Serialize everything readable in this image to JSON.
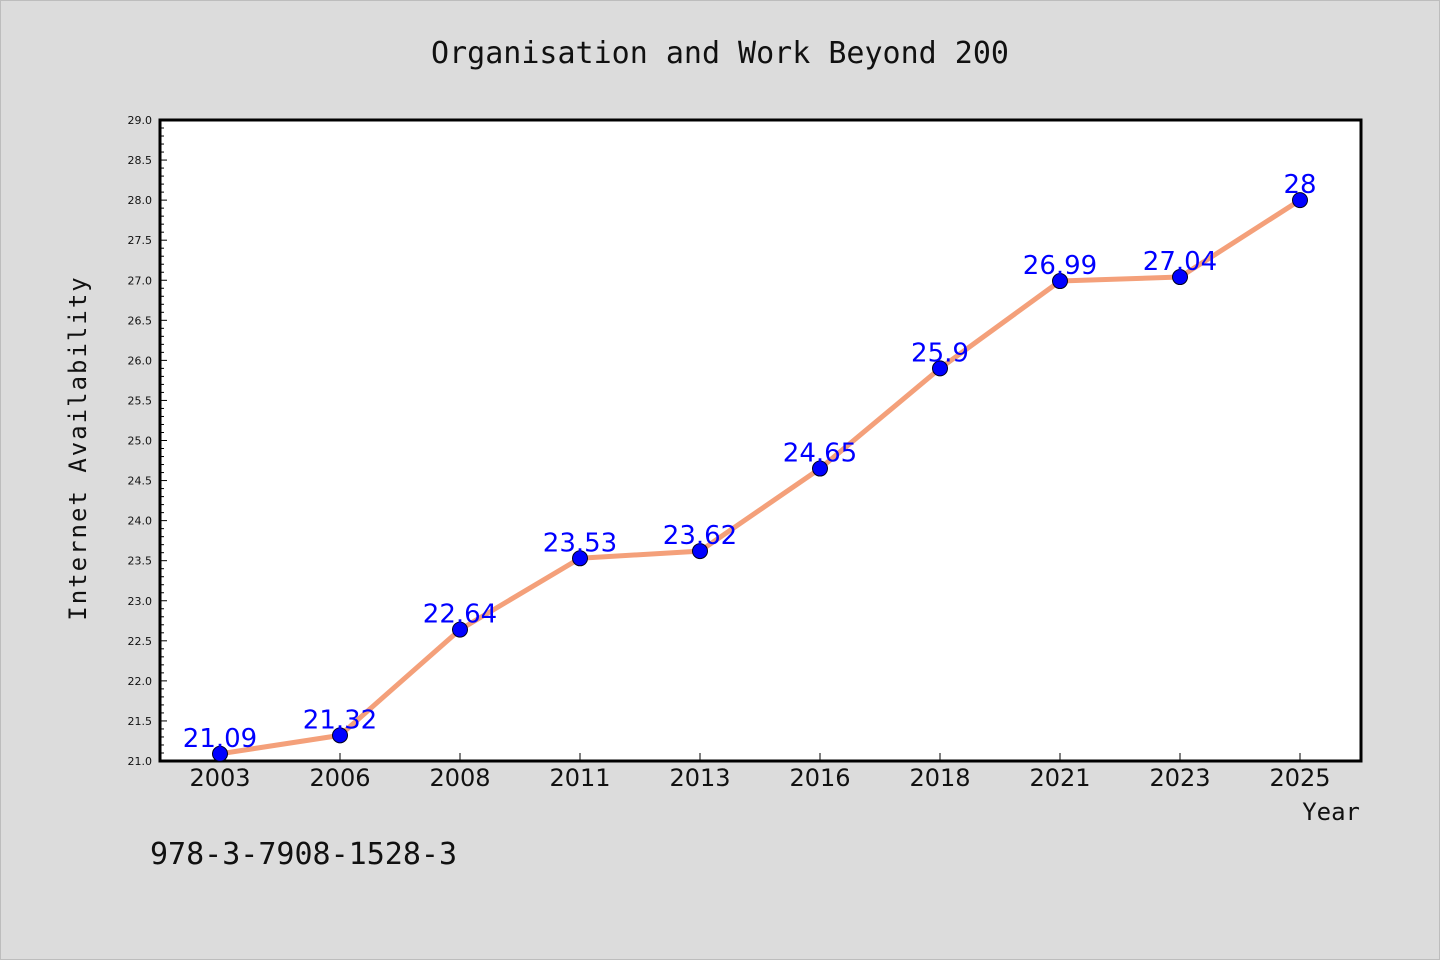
{
  "chart_data": {
    "type": "line",
    "title": "Organisation and Work Beyond 200",
    "xlabel": "Year",
    "ylabel": "Internet Availability",
    "categories": [
      "2003",
      "2006",
      "2008",
      "2011",
      "2013",
      "2016",
      "2018",
      "2021",
      "2023",
      "2025"
    ],
    "series": [
      {
        "values": [
          21.09,
          21.32,
          22.64,
          23.53,
          23.62,
          24.65,
          25.9,
          26.99,
          27.04,
          28
        ]
      }
    ],
    "data_labels": [
      "21.09",
      "21.32",
      "22.64",
      "23.53",
      "23.62",
      "24.65",
      "25.9",
      "26.99",
      "27.04",
      "28"
    ],
    "ylim": [
      21.0,
      29.0
    ],
    "yticks": [
      "21.0",
      "21.5",
      "22.0",
      "22.5",
      "23.0",
      "23.5",
      "24.0",
      "24.5",
      "25.0",
      "25.5",
      "26.0",
      "26.5",
      "27.0",
      "27.5",
      "28.0",
      "28.5",
      "29.0"
    ],
    "grid": false,
    "legend": "none",
    "colors": {
      "line": "#f4a07a",
      "marker": "#0000ff",
      "label": "#0000ff",
      "background": "#dcdcdc",
      "plot_bg": "#ffffff"
    }
  },
  "footer": {
    "isbn": "978-3-7908-1528-3"
  }
}
